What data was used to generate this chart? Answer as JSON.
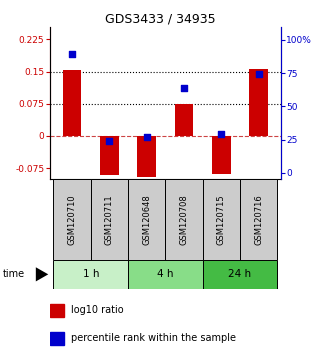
{
  "title": "GDS3433 / 34935",
  "samples": [
    "GSM120710",
    "GSM120711",
    "GSM120648",
    "GSM120708",
    "GSM120715",
    "GSM120716"
  ],
  "log10_ratio": [
    0.153,
    -0.092,
    -0.097,
    0.075,
    -0.088,
    0.155
  ],
  "percentile_rank": [
    89,
    24,
    27,
    64,
    29,
    74
  ],
  "groups": [
    {
      "label": "1 h",
      "indices": [
        0,
        1
      ],
      "color": "#c8f0c8"
    },
    {
      "label": "4 h",
      "indices": [
        2,
        3
      ],
      "color": "#88dd88"
    },
    {
      "label": "24 h",
      "indices": [
        4,
        5
      ],
      "color": "#44bb44"
    }
  ],
  "bar_color": "#cc0000",
  "dot_color": "#0000cc",
  "ylim_left": [
    -0.1,
    0.255
  ],
  "ylim_right": [
    -4.5,
    110
  ],
  "yticks_left": [
    -0.075,
    0,
    0.075,
    0.15,
    0.225
  ],
  "yticks_right": [
    0,
    25,
    50,
    75,
    100
  ],
  "hlines": [
    0.075,
    0.15
  ],
  "hline_zero": 0,
  "bg_color": "#ffffff",
  "sample_box_color": "#cccccc",
  "bar_width": 0.5,
  "legend_items": [
    "log10 ratio",
    "percentile rank within the sample"
  ]
}
